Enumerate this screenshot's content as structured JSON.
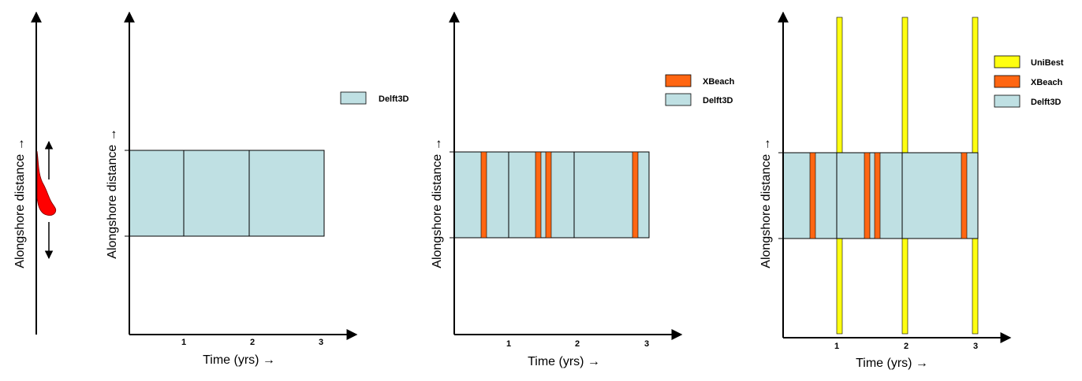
{
  "colors": {
    "delft3d": "#bfe0e3",
    "xbeach": "#ff6612",
    "unibest": "#ffff10",
    "outline": "#000000",
    "coast_feature": "#ff0000"
  },
  "strip": {
    "ylabel": "Alongshore distance →"
  },
  "panels": [
    {
      "ylabel": "Alongshore distance →",
      "xlabel": "Time (yrs) →",
      "ticks": [
        "1",
        "2",
        "3"
      ],
      "legend": [
        "Delft3D"
      ]
    },
    {
      "ylabel": "Alongshore distance →",
      "xlabel": "Time (yrs) →",
      "ticks": [
        "1",
        "2",
        "3"
      ],
      "legend": [
        "XBeach",
        "Delft3D"
      ]
    },
    {
      "ylabel": "Alongshore distance →",
      "xlabel": "Time (yrs) →",
      "ticks": [
        "1",
        "2",
        "3"
      ],
      "legend": [
        "UniBest",
        "XBeach",
        "Delft3D"
      ]
    }
  ]
}
